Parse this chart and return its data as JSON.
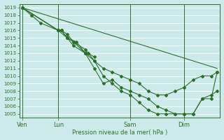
{
  "bg_color": "#cdeaea",
  "grid_color": "#ffffff",
  "line_color": "#2d6e2d",
  "ylabel": "Pression niveau de la mer( hPa )",
  "ylim_min": 1004.5,
  "ylim_max": 1019.5,
  "yticks": [
    1005,
    1006,
    1007,
    1008,
    1009,
    1010,
    1011,
    1012,
    1013,
    1014,
    1015,
    1016,
    1017,
    1018,
    1019
  ],
  "xtick_labels": [
    "Ven",
    "Lun",
    "Sam",
    "Dim"
  ],
  "xtick_positions": [
    0,
    12,
    36,
    54
  ],
  "xlim_min": -1,
  "xlim_max": 66,
  "straight_line": {
    "x": [
      0,
      65
    ],
    "y": [
      1019,
      1011
    ]
  },
  "series1_x": [
    0,
    3,
    6,
    12,
    13,
    15,
    17,
    21,
    22,
    24
  ],
  "series1_y": [
    1019,
    1018,
    1017,
    1016,
    1016,
    1015,
    1014.5,
    1013,
    1013,
    1012.5
  ],
  "series2_x": [
    0,
    12,
    13,
    15,
    17,
    21,
    24,
    27,
    30,
    33,
    36,
    39,
    42,
    45,
    48,
    51,
    54,
    57,
    60,
    63,
    65
  ],
  "series2_y": [
    1019,
    1016,
    1016,
    1015,
    1014,
    1013,
    1011,
    1009,
    1009.5,
    1008.5,
    1008,
    1007.5,
    1007,
    1006,
    1005.5,
    1005,
    1005,
    1005,
    1007,
    1007.5,
    1008
  ],
  "series3_x": [
    0,
    12,
    13,
    15,
    17,
    21,
    24,
    27,
    30,
    33,
    36,
    39,
    42,
    45,
    48,
    51,
    54,
    57,
    60,
    63,
    65
  ],
  "series3_y": [
    1019,
    1016,
    1016,
    1015.5,
    1014.5,
    1013.5,
    1012,
    1010,
    1009,
    1008,
    1007.5,
    1006.5,
    1005.5,
    1005,
    1005,
    1005,
    1005,
    1005,
    1007,
    1007,
    1010.5
  ],
  "series4_x": [
    0,
    12,
    15,
    18,
    21,
    24,
    27,
    30,
    33,
    36,
    39,
    42,
    45,
    48,
    51,
    54,
    57,
    60,
    63,
    65
  ],
  "series4_y": [
    1019,
    1016,
    1015,
    1014.5,
    1013,
    1012,
    1011,
    1010.5,
    1010,
    1009.5,
    1009,
    1008,
    1007.5,
    1007.5,
    1008,
    1008.5,
    1009.5,
    1010,
    1010,
    1010.5
  ]
}
